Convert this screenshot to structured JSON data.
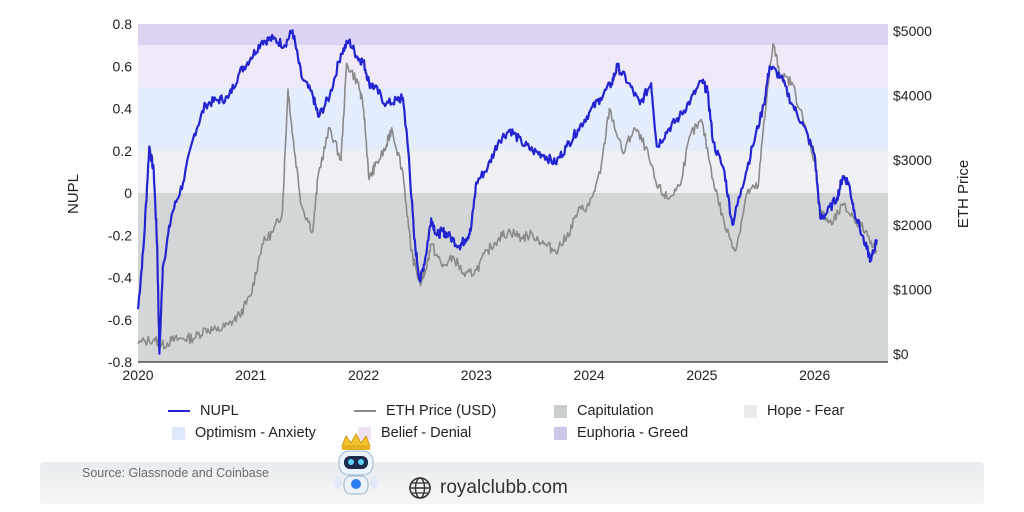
{
  "chart_data": {
    "type": "line",
    "x_range": [
      2020.0,
      2026.65
    ],
    "x_ticks": [
      "2020",
      "2021",
      "2022",
      "2023",
      "2024",
      "2025",
      "2026"
    ],
    "left_axis": {
      "label": "NUPL",
      "ylim": [
        -0.8,
        0.8
      ],
      "ticks": [
        "0.8",
        "0.6",
        "0.4",
        "0.2",
        "0",
        "-0.2",
        "-0.4",
        "-0.6",
        "-0.8"
      ]
    },
    "right_axis": {
      "label": "ETH Price",
      "ylim": [
        0,
        5000
      ],
      "ticks": [
        "$5000",
        "$4000",
        "$3000",
        "$2000",
        "$1000",
        "$0"
      ]
    },
    "zones": [
      {
        "name": "Capitulation",
        "from": -0.8,
        "to": 0.0,
        "color": "#d2d6d6"
      },
      {
        "name": "Hope - Fear",
        "from": 0.0,
        "to": 0.2,
        "color": "#eff0f3"
      },
      {
        "name": "Optimism - Anxiety",
        "from": 0.2,
        "to": 0.5,
        "color": "#e3edfb"
      },
      {
        "name": "Belief - Denial",
        "from": 0.5,
        "to": 0.7,
        "color": "#f0eaf8"
      },
      {
        "name": "Euphoria - Greed",
        "from": 0.7,
        "to": 0.8,
        "color": "#dbd3f1"
      }
    ],
    "series": [
      {
        "name": "NUPL",
        "axis": "left",
        "color": "#2424d0",
        "points": [
          [
            2020.0,
            -0.55
          ],
          [
            2020.05,
            -0.25
          ],
          [
            2020.1,
            0.22
          ],
          [
            2020.14,
            0.1
          ],
          [
            2020.17,
            -0.25
          ],
          [
            2020.19,
            -0.76
          ],
          [
            2020.22,
            -0.35
          ],
          [
            2020.3,
            -0.1
          ],
          [
            2020.4,
            0.05
          ],
          [
            2020.5,
            0.28
          ],
          [
            2020.6,
            0.42
          ],
          [
            2020.7,
            0.44
          ],
          [
            2020.8,
            0.45
          ],
          [
            2020.9,
            0.57
          ],
          [
            2021.0,
            0.64
          ],
          [
            2021.1,
            0.72
          ],
          [
            2021.2,
            0.73
          ],
          [
            2021.3,
            0.7
          ],
          [
            2021.37,
            0.77
          ],
          [
            2021.45,
            0.55
          ],
          [
            2021.55,
            0.46
          ],
          [
            2021.6,
            0.36
          ],
          [
            2021.7,
            0.46
          ],
          [
            2021.8,
            0.66
          ],
          [
            2021.87,
            0.72
          ],
          [
            2021.95,
            0.64
          ],
          [
            2022.0,
            0.62
          ],
          [
            2022.05,
            0.52
          ],
          [
            2022.1,
            0.5
          ],
          [
            2022.2,
            0.42
          ],
          [
            2022.3,
            0.44
          ],
          [
            2022.35,
            0.45
          ],
          [
            2022.4,
            0.18
          ],
          [
            2022.45,
            -0.22
          ],
          [
            2022.5,
            -0.42
          ],
          [
            2022.55,
            -0.3
          ],
          [
            2022.6,
            -0.12
          ],
          [
            2022.65,
            -0.2
          ],
          [
            2022.7,
            -0.18
          ],
          [
            2022.75,
            -0.2
          ],
          [
            2022.85,
            -0.25
          ],
          [
            2022.9,
            -0.22
          ],
          [
            2022.95,
            -0.18
          ],
          [
            2023.0,
            0.05
          ],
          [
            2023.1,
            0.12
          ],
          [
            2023.2,
            0.25
          ],
          [
            2023.3,
            0.3
          ],
          [
            2023.4,
            0.24
          ],
          [
            2023.5,
            0.2
          ],
          [
            2023.6,
            0.18
          ],
          [
            2023.7,
            0.14
          ],
          [
            2023.8,
            0.22
          ],
          [
            2023.9,
            0.3
          ],
          [
            2024.0,
            0.38
          ],
          [
            2024.1,
            0.45
          ],
          [
            2024.2,
            0.52
          ],
          [
            2024.25,
            0.6
          ],
          [
            2024.35,
            0.52
          ],
          [
            2024.45,
            0.42
          ],
          [
            2024.55,
            0.52
          ],
          [
            2024.6,
            0.22
          ],
          [
            2024.7,
            0.3
          ],
          [
            2024.8,
            0.36
          ],
          [
            2024.9,
            0.44
          ],
          [
            2025.0,
            0.53
          ],
          [
            2025.05,
            0.48
          ],
          [
            2025.1,
            0.24
          ],
          [
            2025.2,
            0.1
          ],
          [
            2025.27,
            -0.15
          ],
          [
            2025.35,
            0.02
          ],
          [
            2025.45,
            0.22
          ],
          [
            2025.55,
            0.42
          ],
          [
            2025.6,
            0.6
          ],
          [
            2025.7,
            0.55
          ],
          [
            2025.8,
            0.42
          ],
          [
            2025.9,
            0.32
          ],
          [
            2026.0,
            0.18
          ],
          [
            2026.05,
            -0.12
          ],
          [
            2026.1,
            -0.1
          ],
          [
            2026.2,
            -0.02
          ],
          [
            2026.25,
            0.08
          ],
          [
            2026.3,
            0.05
          ],
          [
            2026.35,
            -0.08
          ],
          [
            2026.45,
            -0.25
          ],
          [
            2026.5,
            -0.32
          ],
          [
            2026.55,
            -0.22
          ]
        ]
      },
      {
        "name": "ETH Price (USD)",
        "axis": "right",
        "color": "#8a8a8a",
        "points": [
          [
            2020.0,
            160
          ],
          [
            2020.15,
            240
          ],
          [
            2020.2,
            120
          ],
          [
            2020.3,
            210
          ],
          [
            2020.4,
            240
          ],
          [
            2020.5,
            250
          ],
          [
            2020.6,
            390
          ],
          [
            2020.7,
            360
          ],
          [
            2020.8,
            450
          ],
          [
            2020.9,
            600
          ],
          [
            2021.0,
            900
          ],
          [
            2021.1,
            1700
          ],
          [
            2021.2,
            1900
          ],
          [
            2021.28,
            2200
          ],
          [
            2021.33,
            4100
          ],
          [
            2021.37,
            3400
          ],
          [
            2021.45,
            2300
          ],
          [
            2021.55,
            1900
          ],
          [
            2021.6,
            2800
          ],
          [
            2021.7,
            3500
          ],
          [
            2021.8,
            3000
          ],
          [
            2021.85,
            4500
          ],
          [
            2021.95,
            4200
          ],
          [
            2022.0,
            3800
          ],
          [
            2022.05,
            2700
          ],
          [
            2022.1,
            2900
          ],
          [
            2022.2,
            3200
          ],
          [
            2022.25,
            3500
          ],
          [
            2022.35,
            2800
          ],
          [
            2022.42,
            1600
          ],
          [
            2022.5,
            1100
          ],
          [
            2022.55,
            1300
          ],
          [
            2022.6,
            1700
          ],
          [
            2022.7,
            1350
          ],
          [
            2022.8,
            1500
          ],
          [
            2022.9,
            1200
          ],
          [
            2023.0,
            1300
          ],
          [
            2023.1,
            1600
          ],
          [
            2023.2,
            1800
          ],
          [
            2023.3,
            1900
          ],
          [
            2023.4,
            1800
          ],
          [
            2023.5,
            1850
          ],
          [
            2023.6,
            1700
          ],
          [
            2023.7,
            1600
          ],
          [
            2023.8,
            1800
          ],
          [
            2023.9,
            2200
          ],
          [
            2024.0,
            2300
          ],
          [
            2024.1,
            2800
          ],
          [
            2024.18,
            3800
          ],
          [
            2024.3,
            3100
          ],
          [
            2024.4,
            3500
          ],
          [
            2024.5,
            3200
          ],
          [
            2024.6,
            2600
          ],
          [
            2024.7,
            2400
          ],
          [
            2024.8,
            2600
          ],
          [
            2024.9,
            3400
          ],
          [
            2025.0,
            3600
          ],
          [
            2025.1,
            2700
          ],
          [
            2025.2,
            2000
          ],
          [
            2025.3,
            1600
          ],
          [
            2025.4,
            2500
          ],
          [
            2025.5,
            2600
          ],
          [
            2025.55,
            3600
          ],
          [
            2025.63,
            4800
          ],
          [
            2025.7,
            4300
          ],
          [
            2025.8,
            4200
          ],
          [
            2025.9,
            3600
          ],
          [
            2026.0,
            3000
          ],
          [
            2026.05,
            2200
          ],
          [
            2026.15,
            2000
          ],
          [
            2026.25,
            2300
          ],
          [
            2026.35,
            2100
          ],
          [
            2026.45,
            1900
          ],
          [
            2026.55,
            1600
          ]
        ]
      }
    ],
    "legend": [
      {
        "label": "NUPL",
        "kind": "line",
        "color": "#2424d0"
      },
      {
        "label": "ETH Price (USD)",
        "kind": "line",
        "color": "#8a8a8a"
      },
      {
        "label": "Capitulation",
        "kind": "box",
        "color": "#c9cdcd"
      },
      {
        "label": "Hope - Fear",
        "kind": "box",
        "color": "#ebebeb"
      },
      {
        "label": "Optimism - Anxiety",
        "kind": "box",
        "color": "#dde8fa"
      },
      {
        "label": "Belief - Denial",
        "kind": "box",
        "color": "#efe3f3"
      },
      {
        "label": "Euphoria - Greed",
        "kind": "box",
        "color": "#cfc6ec"
      }
    ],
    "grid": false
  },
  "footer": {
    "source": "Source: Glassnode and Coinbase",
    "brand": "royalclubb.com"
  }
}
